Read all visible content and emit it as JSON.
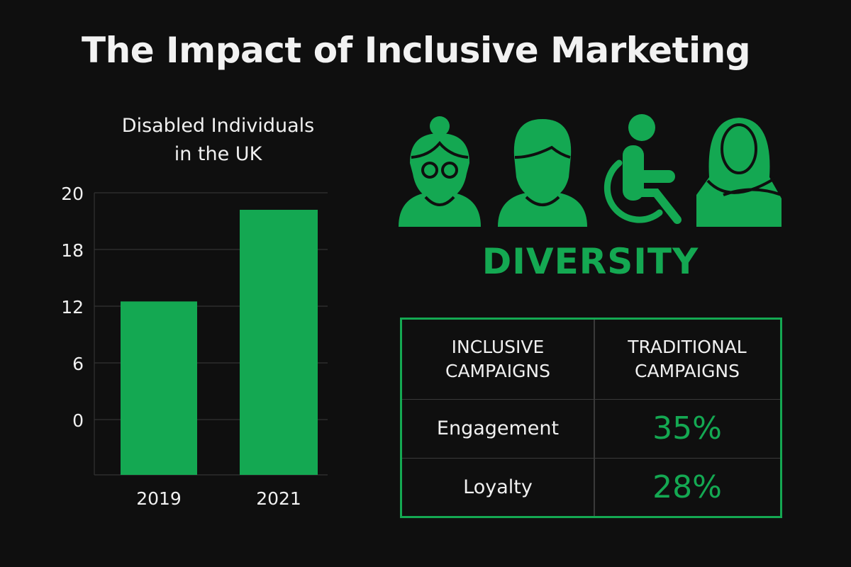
{
  "title": "The Impact of Inclusive Marketing",
  "colors": {
    "background": "#0f0f0f",
    "accent": "#14a852",
    "grid": "#333333",
    "text": "#f0f0f0"
  },
  "chart_data": {
    "type": "bar",
    "title": "Disabled Individuals in the UK",
    "title_lines": [
      "Disabled Individuals",
      "in the UK"
    ],
    "categories": [
      "2019",
      "2021"
    ],
    "values": [
      12.5,
      19.4
    ],
    "yticks": [
      20,
      18,
      12,
      6,
      0
    ],
    "xlabel": "",
    "ylabel": "",
    "grid": true,
    "bar_color": "#14a852"
  },
  "diversity": {
    "label": "DIVERSITY",
    "icons": [
      "woman-with-glasses-icon",
      "man-icon",
      "wheelchair-icon",
      "woman-in-hijab-icon"
    ]
  },
  "table": {
    "headers": [
      "INCLUSIVE CAMPAIGNS",
      "TRADITIONAL CAMPAIGNS"
    ],
    "rows": [
      {
        "label": "Engagement",
        "value": "35%"
      },
      {
        "label": "Loyalty",
        "value": "28%"
      }
    ]
  }
}
